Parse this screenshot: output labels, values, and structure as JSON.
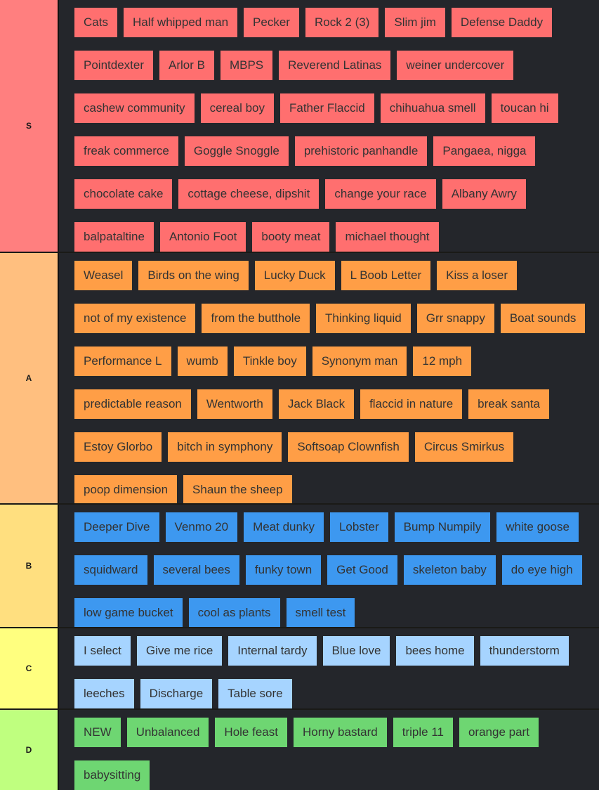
{
  "tiers": [
    {
      "label": "S",
      "color": "#ff7f7f",
      "item_color": "#ff6f6f",
      "items": [
        "Cats",
        "Half whipped man",
        "Pecker",
        "Rock 2 (3)",
        "Slim jim",
        "Defense Daddy",
        "Pointdexter",
        "Arlor B",
        "MBPS",
        "Reverend Latinas",
        "weiner undercover",
        "cashew community",
        "cereal boy",
        "Father Flaccid",
        "chihuahua smell",
        "toucan hi",
        "freak commerce",
        "Goggle Snoggle",
        "prehistoric panhandle",
        "Pangaea, nigga",
        "chocolate cake",
        "cottage cheese, dipshit",
        "change your race",
        "Albany Awry",
        "balpataltine",
        "Antonio Foot",
        "booty meat",
        "michael thought"
      ]
    },
    {
      "label": "A",
      "color": "#ffbf7f",
      "item_color": "#ff9e46",
      "items": [
        "Weasel",
        "Birds on the wing",
        "Lucky Duck",
        "L Boob Letter",
        "Kiss a loser",
        "not of my existence",
        "from the butthole",
        "Thinking liquid",
        "Grr snappy",
        "Boat sounds",
        "Performance L",
        "wumb",
        "Tinkle boy",
        "Synonym man",
        "12 mph",
        "predictable reason",
        "Wentworth",
        "Jack Black",
        "flaccid in nature",
        "break santa",
        "Estoy Glorbo",
        "bitch in symphony",
        "Softsoap Clownfish",
        "Circus Smirkus",
        "poop dimension",
        "Shaun the sheep"
      ]
    },
    {
      "label": "B",
      "color": "#ffdf7f",
      "item_color": "#3d98f0",
      "items": [
        "Deeper Dive",
        "Venmo 20",
        "Meat dunky",
        "Lobster",
        "Bump Numpily",
        "white goose",
        "squidward",
        "several bees",
        "funky town",
        "Get Good",
        "skeleton baby",
        "do eye high",
        "low game bucket",
        "cool as plants",
        "smell test"
      ]
    },
    {
      "label": "C",
      "color": "#ffff7f",
      "item_color": "#a6d4ff",
      "items": [
        "I select",
        "Give me rice",
        "Internal tardy",
        "Blue love",
        "bees home",
        "thunderstorm",
        "leeches",
        "Discharge",
        "Table sore"
      ]
    },
    {
      "label": "D",
      "color": "#bfff7f",
      "item_color": "#6ed672",
      "items": [
        "NEW",
        "Unbalanced",
        "Hole feast",
        "Horny bastard",
        "triple 11",
        "orange part",
        "babysitting"
      ]
    }
  ]
}
